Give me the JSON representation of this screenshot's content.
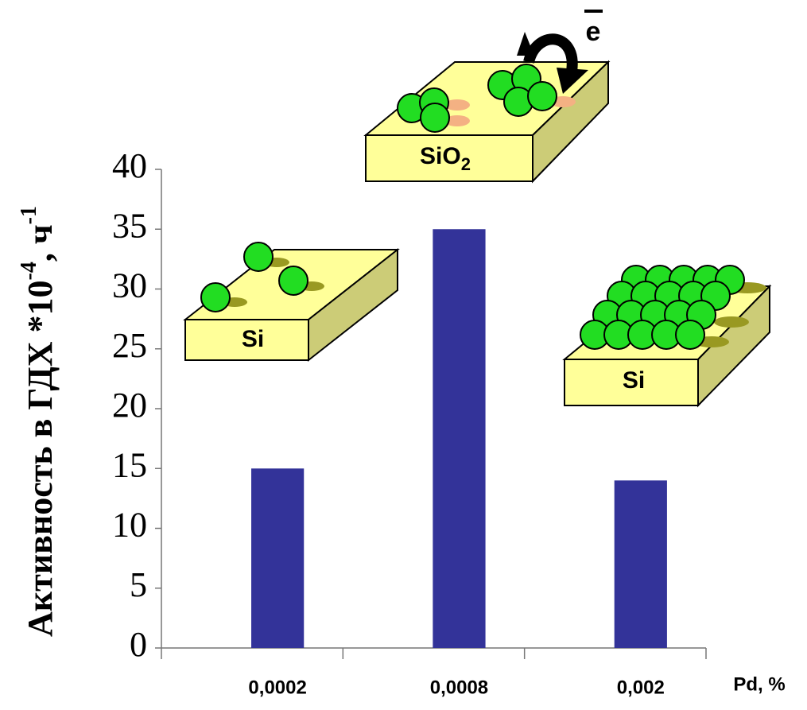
{
  "chart_data": {
    "type": "bar",
    "ylabel": [
      "Активность в ГДХ *10",
      "-4",
      ", ч",
      "-1"
    ],
    "xlabel": "Pd, %",
    "categories": [
      "0,0002",
      "0,0008",
      "0,002"
    ],
    "values": [
      15,
      35,
      14
    ],
    "color": "#333399",
    "ylim": [
      0,
      40
    ],
    "yticks": [
      0,
      5,
      10,
      15,
      20,
      25,
      30,
      35,
      40
    ],
    "annotations": {
      "left": "Si",
      "middle": [
        "SiO",
        "2"
      ],
      "electron": "e",
      "right": "Si"
    }
  }
}
